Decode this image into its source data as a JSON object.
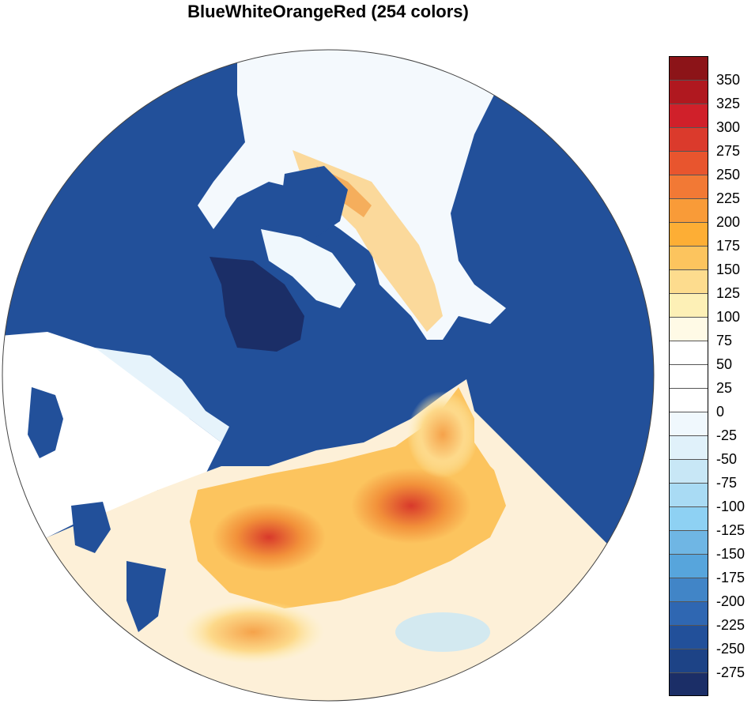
{
  "title": "BlueWhiteOrangeRed (254 colors)",
  "colorbar": {
    "labels": [
      "350",
      "325",
      "300",
      "275",
      "250",
      "225",
      "200",
      "175",
      "150",
      "125",
      "100",
      "75",
      "50",
      "25",
      "0",
      "-25",
      "-50",
      "-75",
      "-100",
      "-125",
      "-150",
      "-175",
      "-200",
      "-225",
      "-250",
      "-275"
    ],
    "colors": [
      "#8c1418",
      "#b0181f",
      "#d0202a",
      "#db3a2c",
      "#e8552e",
      "#f27935",
      "#f99b38",
      "#fdae35",
      "#fcc45e",
      "#fddc8e",
      "#fdf0b6",
      "#fffae6",
      "#ffffff",
      "#ffffff",
      "#ffffff",
      "#f0f8fd",
      "#e0f1fa",
      "#c8e7f6",
      "#a9dbf4",
      "#8ed1f3",
      "#6fb6e4",
      "#57a5dc",
      "#4185c7",
      "#2f67b2",
      "#22509a",
      "#1d4386",
      "#1b2e67"
    ]
  },
  "map": {
    "projection": "polar stereographic (north pole)",
    "ocean_color": "#22509a",
    "deep_color": "#1b2e67",
    "land_base_color": "#f4f9fd"
  }
}
